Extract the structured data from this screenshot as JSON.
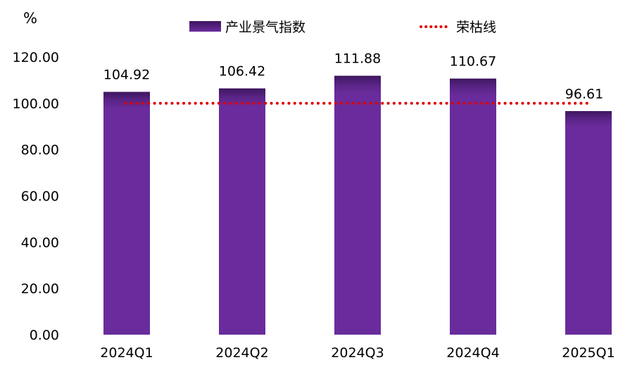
{
  "chart_data": {
    "type": "bar",
    "unit": "%",
    "categories": [
      "2024Q1",
      "2024Q2",
      "2024Q3",
      "2024Q4",
      "2025Q1"
    ],
    "series": [
      {
        "name": "产业景气指数",
        "type": "bar",
        "color": "#6a2a9a",
        "values": [
          104.92,
          106.42,
          111.88,
          110.67,
          96.61
        ],
        "labels": [
          "104.92",
          "106.42",
          "111.88",
          "110.67",
          "96.61"
        ]
      },
      {
        "name": "荣枯线",
        "type": "line",
        "style": "dotted",
        "color": "#e00000",
        "values": [
          100,
          100,
          100,
          100,
          100
        ]
      }
    ],
    "ylim": [
      0,
      120
    ],
    "yticks": [
      "0.00",
      "20.00",
      "40.00",
      "60.00",
      "80.00",
      "100.00",
      "120.00"
    ],
    "ytick_values": [
      0,
      20,
      40,
      60,
      80,
      100,
      120
    ],
    "grid": false,
    "legend": "top"
  }
}
